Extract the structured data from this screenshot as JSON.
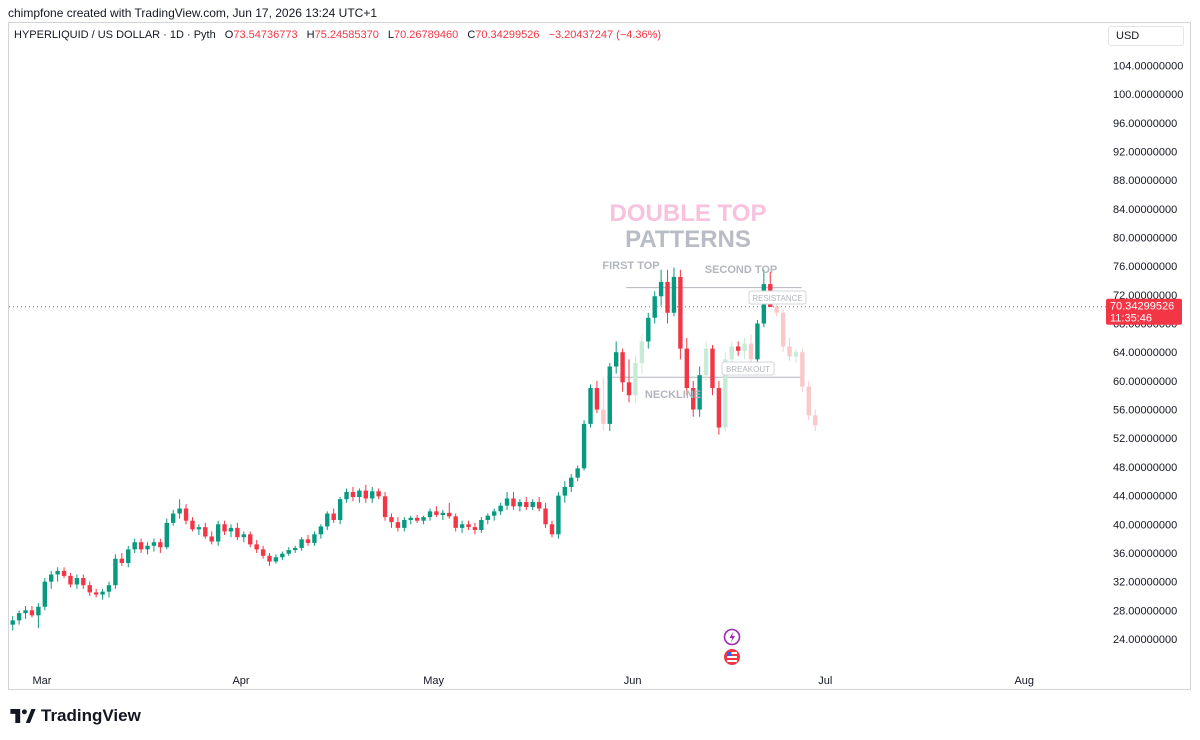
{
  "header": {
    "caption": "chimpfone created with TradingView.com, Jun 17, 2026 13:24 UTC+1"
  },
  "legend": {
    "symbol": "HYPERLIQUID / US DOLLAR · 1D · Pyth",
    "o_label": "O",
    "o_value": "73.54736773",
    "h_label": "H",
    "h_value": "75.24585370",
    "l_label": "L",
    "l_value": "70.26789460",
    "c_label": "C",
    "c_value": "70.34299526",
    "change": "−3.20437247 (−4.36%)"
  },
  "currency": "USD",
  "price_badge": {
    "price": "70.34299526",
    "countdown": "11:35:46",
    "value": 70.343
  },
  "annotations": {
    "title_line1": "DOUBLE TOP",
    "title_line2": "PATTERNS",
    "first_top": "FIRST TOP",
    "second_top": "SECOND TOP",
    "resistance": "RESISTANCE",
    "breakout": "BREAKOUT",
    "neckline": "NECKLINE"
  },
  "colors": {
    "up": "#089981",
    "down": "#f23645",
    "up_faded": "#c7ebd6",
    "down_faded": "#f9c9c9",
    "title_pink": "#f8c2de",
    "title_gray": "#b8bcc4"
  },
  "footer": {
    "brand": "TradingView"
  },
  "chart_data": {
    "type": "candlestick",
    "ylim": [
      22,
      106
    ],
    "y_ticks": [
      "104.00000000",
      "100.00000000",
      "96.00000000",
      "92.00000000",
      "88.00000000",
      "84.00000000",
      "80.00000000",
      "76.00000000",
      "72.00000000",
      "68.00000000",
      "64.00000000",
      "60.00000000",
      "56.00000000",
      "52.00000000",
      "48.00000000",
      "44.00000000",
      "40.00000000",
      "36.00000000",
      "32.00000000",
      "28.00000000",
      "24.00000000"
    ],
    "y_tick_values": [
      104,
      100,
      96,
      92,
      88,
      84,
      80,
      76,
      72,
      68,
      64,
      60,
      56,
      52,
      48,
      44,
      40,
      36,
      32,
      28,
      24
    ],
    "x_labels": [
      "Mar",
      "Apr",
      "May",
      "Jun",
      "Jul",
      "Aug"
    ],
    "x_label_days": [
      0,
      31,
      61,
      92,
      122,
      153
    ],
    "start": "2026-02-26",
    "resistance_level": 73.0,
    "neckline_level": 60.5,
    "candles": [
      {
        "o": 26.0,
        "h": 27.2,
        "l": 25.2,
        "c": 26.6
      },
      {
        "o": 26.6,
        "h": 28.0,
        "l": 26.0,
        "c": 27.6
      },
      {
        "o": 27.6,
        "h": 28.6,
        "l": 26.8,
        "c": 28.0
      },
      {
        "o": 28.0,
        "h": 28.6,
        "l": 27.0,
        "c": 27.3
      },
      {
        "o": 27.3,
        "h": 29.0,
        "l": 25.5,
        "c": 28.5
      },
      {
        "o": 28.5,
        "h": 32.5,
        "l": 28.0,
        "c": 32.0
      },
      {
        "o": 32.0,
        "h": 33.5,
        "l": 31.0,
        "c": 33.0
      },
      {
        "o": 33.0,
        "h": 34.0,
        "l": 32.0,
        "c": 33.5
      },
      {
        "o": 33.5,
        "h": 34.0,
        "l": 32.5,
        "c": 32.8
      },
      {
        "o": 32.8,
        "h": 33.2,
        "l": 31.2,
        "c": 31.6
      },
      {
        "o": 31.6,
        "h": 33.0,
        "l": 31.0,
        "c": 32.5
      },
      {
        "o": 32.5,
        "h": 33.0,
        "l": 31.0,
        "c": 31.5
      },
      {
        "o": 31.5,
        "h": 32.0,
        "l": 30.0,
        "c": 30.5
      },
      {
        "o": 30.5,
        "h": 31.0,
        "l": 29.8,
        "c": 30.2
      },
      {
        "o": 30.2,
        "h": 31.0,
        "l": 29.5,
        "c": 30.6
      },
      {
        "o": 30.6,
        "h": 32.0,
        "l": 29.8,
        "c": 31.5
      },
      {
        "o": 31.5,
        "h": 35.8,
        "l": 31.0,
        "c": 35.2
      },
      {
        "o": 35.2,
        "h": 36.0,
        "l": 34.2,
        "c": 34.6
      },
      {
        "o": 34.6,
        "h": 37.0,
        "l": 34.0,
        "c": 36.5
      },
      {
        "o": 36.5,
        "h": 38.0,
        "l": 36.0,
        "c": 37.5
      },
      {
        "o": 37.5,
        "h": 38.0,
        "l": 36.0,
        "c": 36.5
      },
      {
        "o": 36.5,
        "h": 37.5,
        "l": 35.8,
        "c": 37.0
      },
      {
        "o": 37.0,
        "h": 38.0,
        "l": 36.2,
        "c": 37.5
      },
      {
        "o": 37.5,
        "h": 38.0,
        "l": 36.0,
        "c": 36.8
      },
      {
        "o": 36.8,
        "h": 40.8,
        "l": 36.5,
        "c": 40.2
      },
      {
        "o": 40.2,
        "h": 42.0,
        "l": 39.8,
        "c": 41.5
      },
      {
        "o": 41.5,
        "h": 43.5,
        "l": 40.8,
        "c": 42.2
      },
      {
        "o": 42.2,
        "h": 42.8,
        "l": 40.0,
        "c": 40.5
      },
      {
        "o": 40.5,
        "h": 41.0,
        "l": 39.0,
        "c": 39.3
      },
      {
        "o": 39.3,
        "h": 40.0,
        "l": 38.5,
        "c": 39.6
      },
      {
        "o": 39.6,
        "h": 40.2,
        "l": 38.0,
        "c": 38.3
      },
      {
        "o": 38.3,
        "h": 39.0,
        "l": 37.2,
        "c": 37.6
      },
      {
        "o": 37.6,
        "h": 40.5,
        "l": 37.0,
        "c": 40.0
      },
      {
        "o": 40.0,
        "h": 40.5,
        "l": 38.5,
        "c": 39.0
      },
      {
        "o": 39.0,
        "h": 40.0,
        "l": 38.2,
        "c": 39.5
      },
      {
        "o": 39.5,
        "h": 40.2,
        "l": 37.8,
        "c": 38.2
      },
      {
        "o": 38.2,
        "h": 39.0,
        "l": 37.5,
        "c": 38.6
      },
      {
        "o": 38.6,
        "h": 39.0,
        "l": 36.8,
        "c": 37.2
      },
      {
        "o": 37.2,
        "h": 37.8,
        "l": 36.0,
        "c": 36.5
      },
      {
        "o": 36.5,
        "h": 37.0,
        "l": 35.2,
        "c": 35.6
      },
      {
        "o": 35.6,
        "h": 36.0,
        "l": 34.2,
        "c": 34.8
      },
      {
        "o": 34.8,
        "h": 35.8,
        "l": 34.5,
        "c": 35.4
      },
      {
        "o": 35.4,
        "h": 36.2,
        "l": 35.0,
        "c": 35.9
      },
      {
        "o": 35.9,
        "h": 36.8,
        "l": 35.6,
        "c": 36.4
      },
      {
        "o": 36.4,
        "h": 37.0,
        "l": 36.0,
        "c": 36.7
      },
      {
        "o": 36.7,
        "h": 38.2,
        "l": 36.3,
        "c": 37.9
      },
      {
        "o": 37.9,
        "h": 38.5,
        "l": 37.0,
        "c": 37.4
      },
      {
        "o": 37.4,
        "h": 39.0,
        "l": 37.0,
        "c": 38.6
      },
      {
        "o": 38.6,
        "h": 40.0,
        "l": 38.0,
        "c": 39.7
      },
      {
        "o": 39.7,
        "h": 41.8,
        "l": 39.2,
        "c": 41.5
      },
      {
        "o": 41.5,
        "h": 42.2,
        "l": 40.2,
        "c": 40.6
      },
      {
        "o": 40.6,
        "h": 43.8,
        "l": 40.0,
        "c": 43.5
      },
      {
        "o": 43.5,
        "h": 45.0,
        "l": 43.0,
        "c": 44.5
      },
      {
        "o": 44.5,
        "h": 45.2,
        "l": 43.2,
        "c": 43.8
      },
      {
        "o": 43.8,
        "h": 45.0,
        "l": 43.0,
        "c": 44.7
      },
      {
        "o": 44.7,
        "h": 45.5,
        "l": 43.0,
        "c": 43.6
      },
      {
        "o": 43.6,
        "h": 45.2,
        "l": 43.0,
        "c": 44.6
      },
      {
        "o": 44.6,
        "h": 45.0,
        "l": 43.5,
        "c": 43.9
      },
      {
        "o": 43.9,
        "h": 44.5,
        "l": 40.5,
        "c": 41.0
      },
      {
        "o": 41.0,
        "h": 41.5,
        "l": 39.5,
        "c": 40.3
      },
      {
        "o": 40.3,
        "h": 41.0,
        "l": 39.0,
        "c": 39.5
      },
      {
        "o": 39.5,
        "h": 41.0,
        "l": 39.0,
        "c": 40.6
      },
      {
        "o": 40.6,
        "h": 41.2,
        "l": 40.0,
        "c": 40.9
      },
      {
        "o": 40.9,
        "h": 41.3,
        "l": 40.2,
        "c": 40.5
      },
      {
        "o": 40.5,
        "h": 41.2,
        "l": 40.0,
        "c": 41.0
      },
      {
        "o": 41.0,
        "h": 42.2,
        "l": 40.5,
        "c": 41.8
      },
      {
        "o": 41.8,
        "h": 42.5,
        "l": 41.0,
        "c": 41.3
      },
      {
        "o": 41.3,
        "h": 42.0,
        "l": 40.6,
        "c": 41.6
      },
      {
        "o": 41.6,
        "h": 43.0,
        "l": 40.8,
        "c": 41.1
      },
      {
        "o": 41.1,
        "h": 41.5,
        "l": 39.0,
        "c": 39.5
      },
      {
        "o": 39.5,
        "h": 40.5,
        "l": 38.8,
        "c": 40.0
      },
      {
        "o": 40.0,
        "h": 40.5,
        "l": 39.2,
        "c": 39.6
      },
      {
        "o": 39.6,
        "h": 40.2,
        "l": 38.6,
        "c": 39.2
      },
      {
        "o": 39.2,
        "h": 41.0,
        "l": 38.8,
        "c": 40.6
      },
      {
        "o": 40.6,
        "h": 41.5,
        "l": 40.0,
        "c": 41.2
      },
      {
        "o": 41.2,
        "h": 42.2,
        "l": 40.5,
        "c": 41.8
      },
      {
        "o": 41.8,
        "h": 43.0,
        "l": 41.3,
        "c": 42.6
      },
      {
        "o": 42.6,
        "h": 44.5,
        "l": 42.0,
        "c": 43.6
      },
      {
        "o": 43.6,
        "h": 44.5,
        "l": 42.0,
        "c": 42.5
      },
      {
        "o": 42.5,
        "h": 43.5,
        "l": 41.8,
        "c": 43.1
      },
      {
        "o": 43.1,
        "h": 43.8,
        "l": 42.0,
        "c": 42.4
      },
      {
        "o": 42.4,
        "h": 43.5,
        "l": 42.0,
        "c": 43.1
      },
      {
        "o": 43.1,
        "h": 43.8,
        "l": 41.8,
        "c": 42.2
      },
      {
        "o": 42.2,
        "h": 43.0,
        "l": 39.5,
        "c": 40.0
      },
      {
        "o": 40.0,
        "h": 40.5,
        "l": 38.2,
        "c": 38.6
      },
      {
        "o": 38.6,
        "h": 44.5,
        "l": 38.0,
        "c": 44.0
      },
      {
        "o": 44.0,
        "h": 46.0,
        "l": 43.0,
        "c": 45.2
      },
      {
        "o": 45.2,
        "h": 47.0,
        "l": 44.5,
        "c": 46.5
      },
      {
        "o": 46.5,
        "h": 48.2,
        "l": 46.0,
        "c": 47.8
      },
      {
        "o": 47.8,
        "h": 54.5,
        "l": 47.5,
        "c": 54.0
      },
      {
        "o": 54.0,
        "h": 59.5,
        "l": 53.5,
        "c": 59.0
      },
      {
        "o": 59.0,
        "h": 60.0,
        "l": 55.5,
        "c": 56.0
      },
      {
        "o": 56.0,
        "h": 60.5,
        "l": 53.0,
        "c": 54.0,
        "faded": true
      },
      {
        "o": 54.0,
        "h": 62.5,
        "l": 53.0,
        "c": 62.0
      },
      {
        "o": 62.0,
        "h": 65.5,
        "l": 61.0,
        "c": 64.0
      },
      {
        "o": 64.0,
        "h": 64.5,
        "l": 58.5,
        "c": 59.8
      },
      {
        "o": 59.8,
        "h": 63.0,
        "l": 57.0,
        "c": 58.0
      },
      {
        "o": 58.0,
        "h": 63.5,
        "l": 57.0,
        "c": 62.5,
        "faded": true
      },
      {
        "o": 62.5,
        "h": 66.5,
        "l": 61.0,
        "c": 65.5,
        "faded": true
      },
      {
        "o": 65.5,
        "h": 69.5,
        "l": 64.5,
        "c": 68.8
      },
      {
        "o": 68.8,
        "h": 72.5,
        "l": 68.0,
        "c": 71.8
      },
      {
        "o": 71.8,
        "h": 75.5,
        "l": 70.5,
        "c": 73.8
      },
      {
        "o": 73.8,
        "h": 75.5,
        "l": 68.0,
        "c": 69.5
      },
      {
        "o": 69.5,
        "h": 75.8,
        "l": 69.0,
        "c": 74.5
      },
      {
        "o": 74.5,
        "h": 75.5,
        "l": 63.0,
        "c": 64.5
      },
      {
        "o": 64.5,
        "h": 66.0,
        "l": 58.0,
        "c": 59.0
      },
      {
        "o": 59.0,
        "h": 60.0,
        "l": 55.0,
        "c": 56.0
      },
      {
        "o": 56.0,
        "h": 62.0,
        "l": 55.0,
        "c": 60.8
      },
      {
        "o": 60.8,
        "h": 65.5,
        "l": 60.0,
        "c": 64.5,
        "faded": true
      },
      {
        "o": 64.5,
        "h": 65.0,
        "l": 58.0,
        "c": 59.0
      },
      {
        "o": 59.0,
        "h": 60.0,
        "l": 52.5,
        "c": 53.5
      },
      {
        "o": 53.5,
        "h": 64.0,
        "l": 53.0,
        "c": 63.0,
        "faded": true
      },
      {
        "o": 63.0,
        "h": 65.5,
        "l": 62.0,
        "c": 64.8,
        "faded": true
      },
      {
        "o": 64.8,
        "h": 65.5,
        "l": 63.5,
        "c": 64.2
      },
      {
        "o": 64.2,
        "h": 66.0,
        "l": 63.0,
        "c": 65.2,
        "faded": true
      },
      {
        "o": 65.2,
        "h": 66.5,
        "l": 62.0,
        "c": 63.0,
        "faded": true
      },
      {
        "o": 63.0,
        "h": 68.5,
        "l": 62.5,
        "c": 68.0
      },
      {
        "o": 68.0,
        "h": 75.5,
        "l": 67.5,
        "c": 73.5
      },
      {
        "o": 73.5,
        "h": 75.2,
        "l": 70.3,
        "c": 70.3
      },
      {
        "o": 70.3,
        "h": 72.5,
        "l": 69.0,
        "c": 69.5,
        "faded": true
      },
      {
        "o": 69.5,
        "h": 70.0,
        "l": 64.0,
        "c": 64.8,
        "faded": true
      },
      {
        "o": 64.8,
        "h": 66.0,
        "l": 62.8,
        "c": 63.4,
        "faded": true
      },
      {
        "o": 63.4,
        "h": 64.5,
        "l": 62.5,
        "c": 64.0,
        "faded": true
      },
      {
        "o": 64.0,
        "h": 64.5,
        "l": 58.5,
        "c": 59.2,
        "faded": true
      },
      {
        "o": 59.2,
        "h": 60.0,
        "l": 54.5,
        "c": 55.2,
        "faded": true
      },
      {
        "o": 55.2,
        "h": 56.0,
        "l": 53.0,
        "c": 53.8,
        "faded": true
      }
    ]
  }
}
